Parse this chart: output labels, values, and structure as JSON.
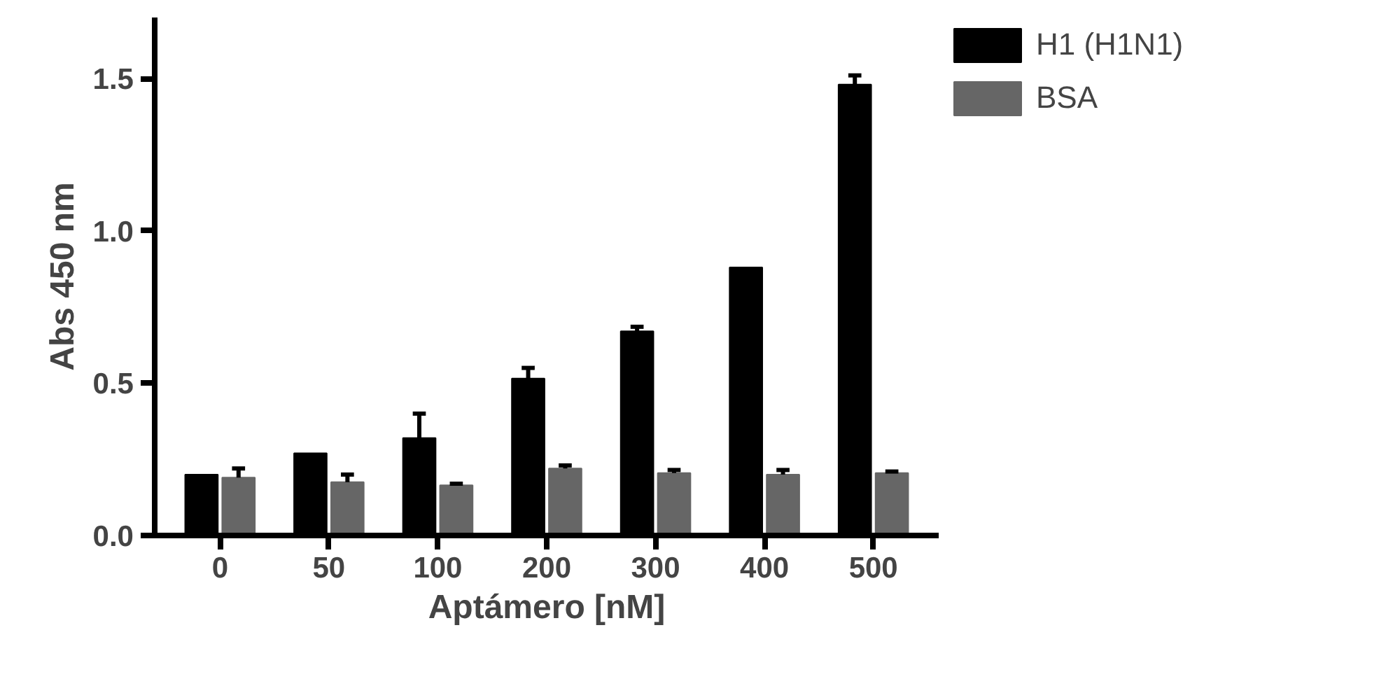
{
  "chart_data": {
    "type": "bar",
    "xlabel": "Aptámero [nM]",
    "ylabel": "Abs 450 nm",
    "categories": [
      "0",
      "50",
      "100",
      "200",
      "300",
      "400",
      "500"
    ],
    "series": [
      {
        "name": "H1 (H1N1)",
        "color": "#000000",
        "values": [
          0.2,
          0.27,
          0.32,
          0.515,
          0.67,
          0.88,
          1.48
        ],
        "errors": [
          null,
          null,
          [
            0.32,
            0.4
          ],
          [
            0.515,
            0.55
          ],
          [
            0.67,
            0.685
          ],
          null,
          [
            1.48,
            1.51
          ]
        ]
      },
      {
        "name": "BSA",
        "color": "#666666",
        "values": [
          0.19,
          0.175,
          0.165,
          0.22,
          0.205,
          0.2,
          0.205
        ],
        "errors": [
          [
            0.19,
            0.22
          ],
          [
            0.175,
            0.2
          ],
          [
            0.165,
            0.17
          ],
          [
            0.22,
            0.23
          ],
          [
            0.205,
            0.215
          ],
          [
            0.2,
            0.215
          ],
          [
            0.205,
            0.21
          ]
        ]
      }
    ],
    "ylim": [
      0,
      1.7
    ],
    "yticks": [
      {
        "value": 0,
        "label": "0.0"
      },
      0.5,
      {
        "value": 1,
        "label": "1.0"
      },
      1.5
    ],
    "grid": false,
    "legend": "top right"
  }
}
